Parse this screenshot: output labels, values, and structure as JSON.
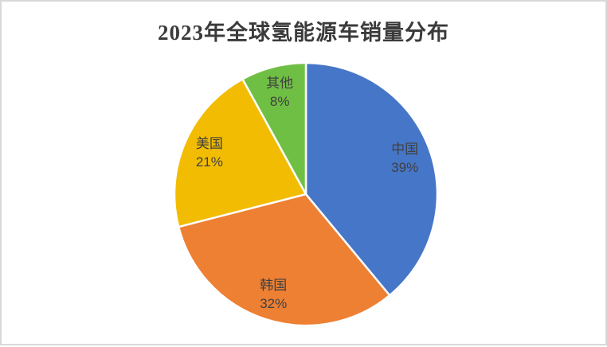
{
  "chart_data": {
    "type": "pie",
    "title": "2023年全球氢能源车销量分布",
    "direction": "clockwise",
    "start_angle_deg": 0,
    "legend": "none",
    "label_style": "name and percent inside slices",
    "slices": [
      {
        "name": "pie-slice-china",
        "label": "中国",
        "value": 39,
        "percent_label": "39%",
        "color": "#4676C8"
      },
      {
        "name": "pie-slice-korea",
        "label": "韩国",
        "value": 32,
        "percent_label": "32%",
        "color": "#ED8033"
      },
      {
        "name": "pie-slice-usa",
        "label": "美国",
        "value": 21,
        "percent_label": "21%",
        "color": "#F2BC02"
      },
      {
        "name": "pie-slice-others",
        "label": "其他",
        "value": 8,
        "percent_label": "8%",
        "color": "#70BF45"
      }
    ],
    "colors": {
      "label_text": "#404040",
      "title_text": "#3b3b3b",
      "slice_border": "#ffffff",
      "frame_border": "#d8d8d8",
      "background": "#ffffff"
    }
  }
}
